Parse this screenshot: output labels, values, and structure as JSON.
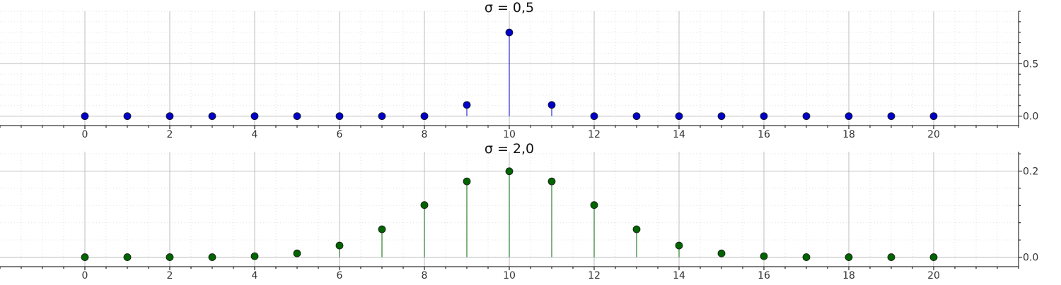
{
  "chart_data": [
    {
      "type": "stem",
      "title": "σ = 0,5",
      "color": "#0000c8",
      "xlim": [
        -2,
        22
      ],
      "ylim": [
        -0.09,
        1.0
      ],
      "xticks": [
        0,
        2,
        4,
        6,
        8,
        10,
        12,
        14,
        16,
        18,
        20
      ],
      "xtick_labels": [
        "0",
        "2",
        "4",
        "6",
        "8",
        "10",
        "12",
        "14",
        "16",
        "18",
        "20"
      ],
      "yticks": [
        0.0,
        0.5
      ],
      "ytick_labels": [
        "0.0",
        "0.5"
      ],
      "grid": true,
      "yaxis_position": "right",
      "x": [
        0,
        1,
        2,
        3,
        4,
        5,
        6,
        7,
        8,
        9,
        10,
        11,
        12,
        13,
        14,
        15,
        16,
        17,
        18,
        19,
        20
      ],
      "values": [
        0,
        0,
        0,
        0,
        0,
        0,
        0,
        0,
        0,
        0.107,
        0.798,
        0.107,
        0,
        0,
        0,
        0,
        0,
        0,
        0,
        0,
        0
      ]
    },
    {
      "type": "stem",
      "title": "σ = 2,0",
      "color": "#006400",
      "xlim": [
        -2,
        22
      ],
      "ylim": [
        -0.022,
        0.245
      ],
      "xticks": [
        0,
        2,
        4,
        6,
        8,
        10,
        12,
        14,
        16,
        18,
        20
      ],
      "xtick_labels": [
        "0",
        "2",
        "4",
        "6",
        "8",
        "10",
        "12",
        "14",
        "16",
        "18",
        "20"
      ],
      "yticks": [
        0.0,
        0.2
      ],
      "ytick_labels": [
        "0.0",
        "0.2"
      ],
      "grid": true,
      "yaxis_position": "right",
      "x": [
        0,
        1,
        2,
        3,
        4,
        5,
        6,
        7,
        8,
        9,
        10,
        11,
        12,
        13,
        14,
        15,
        16,
        17,
        18,
        19,
        20
      ],
      "values": [
        0.0,
        0.0,
        0.0,
        0.0,
        0.0022,
        0.0088,
        0.027,
        0.0648,
        0.121,
        0.176,
        0.1995,
        0.176,
        0.121,
        0.0648,
        0.027,
        0.0088,
        0.0022,
        0.0,
        0.0,
        0.0,
        0.0
      ]
    }
  ]
}
